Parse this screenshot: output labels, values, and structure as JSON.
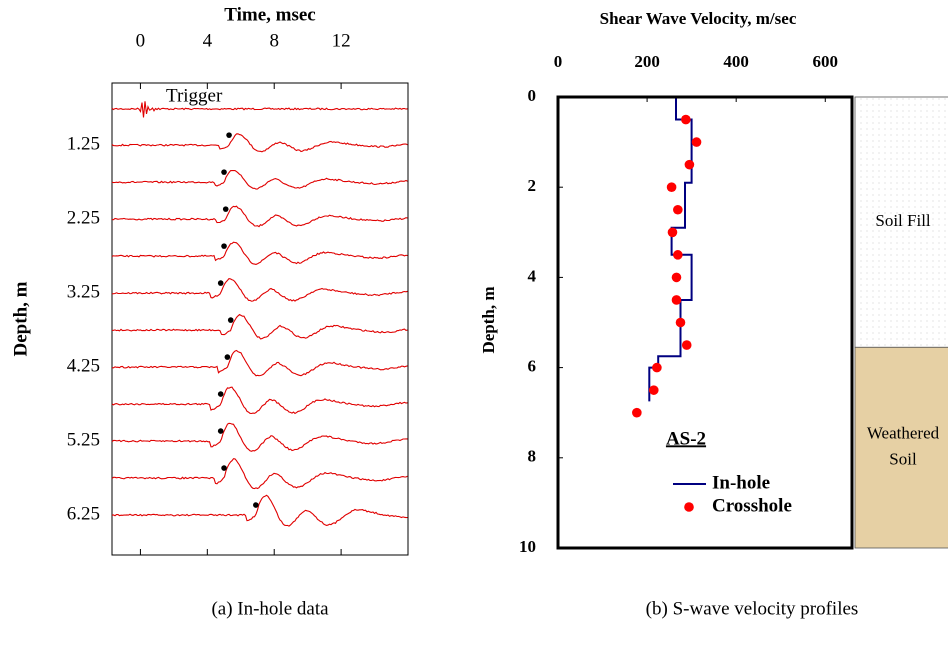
{
  "chart_data": [
    {
      "type": "waveform",
      "title": "Time, msec",
      "ylabel": "Depth, m",
      "caption": "(a) In-hole data",
      "trigger_label": "Trigger",
      "xlim": [
        -1.7,
        16
      ],
      "xticks": [
        0,
        4,
        8,
        12
      ],
      "ylim": [
        0.41,
        6.79
      ],
      "y_reversed": true,
      "yticks": [
        1.25,
        2.25,
        3.25,
        4.25,
        5.25,
        6.25
      ],
      "depths": [
        0.76,
        1.25,
        1.75,
        2.25,
        2.75,
        3.25,
        3.75,
        4.25,
        4.75,
        5.25,
        5.75,
        6.25
      ],
      "arrival": [
        null,
        5.3,
        5.0,
        5.1,
        5.0,
        4.8,
        5.4,
        5.2,
        4.8,
        4.8,
        5.0,
        6.9
      ],
      "trace_color": "#e00000",
      "pick_color": "#000000"
    },
    {
      "type": "line",
      "title": "Shear Wave Velocity, m/sec",
      "ylabel": "Depth, m",
      "caption": "(b) S-wave velocity profiles",
      "legend_title": "AS-2",
      "xlim": [
        0,
        660
      ],
      "xticks": [
        0,
        200,
        400,
        600
      ],
      "ylim": [
        0,
        10
      ],
      "y_reversed": true,
      "yticks": [
        0,
        2,
        4,
        6,
        8,
        10
      ],
      "series": [
        {
          "name": "In-hole",
          "color": "#000080",
          "mode": "line",
          "x": [
            265,
            265,
            300,
            300,
            285,
            285,
            255,
            255,
            300,
            300,
            275,
            275,
            225,
            225,
            205,
            205
          ],
          "y": [
            0,
            0.5,
            0.5,
            1.9,
            1.9,
            2.9,
            2.9,
            3.5,
            3.5,
            4.5,
            4.5,
            5.75,
            5.75,
            6.0,
            6.0,
            6.75
          ]
        },
        {
          "name": "Crosshole",
          "color": "#ff0000",
          "mode": "marker",
          "x": [
            287,
            311,
            295,
            255,
            269,
            257,
            269,
            266,
            266,
            275,
            289,
            222,
            215,
            177
          ],
          "y": [
            0.5,
            1.0,
            1.5,
            2.0,
            2.5,
            3.0,
            3.5,
            4.0,
            4.5,
            5.0,
            5.5,
            6.0,
            6.5,
            7.0
          ]
        }
      ],
      "layers": [
        {
          "label": [
            "Soil Fill"
          ],
          "top": 0,
          "bottom": 5.55,
          "color": "#ffffff"
        },
        {
          "label": [
            "Weathered",
            "Soil"
          ],
          "top": 5.55,
          "bottom": 10,
          "color": "#e6d0a4"
        }
      ]
    }
  ]
}
